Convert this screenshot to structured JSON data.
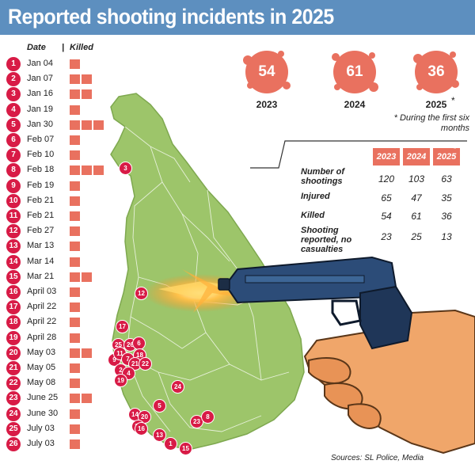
{
  "title": "Reported shooting incidents in 2025",
  "list_headers": {
    "date": "Date",
    "killed": "Killed"
  },
  "incidents": [
    {
      "n": "1",
      "date": "Jan 04",
      "killed": 1
    },
    {
      "n": "2",
      "date": "Jan 07",
      "killed": 2
    },
    {
      "n": "3",
      "date": "Jan 16",
      "killed": 2
    },
    {
      "n": "4",
      "date": "Jan 19",
      "killed": 1
    },
    {
      "n": "5",
      "date": "Jan 30",
      "killed": 3
    },
    {
      "n": "6",
      "date": "Feb 07",
      "killed": 1
    },
    {
      "n": "7",
      "date": "Feb 10",
      "killed": 1
    },
    {
      "n": "8",
      "date": "Feb 18",
      "killed": 3
    },
    {
      "n": "9",
      "date": "Feb 19",
      "killed": 1
    },
    {
      "n": "10",
      "date": "Feb 21",
      "killed": 1
    },
    {
      "n": "11",
      "date": "Feb 21",
      "killed": 1
    },
    {
      "n": "12",
      "date": "Feb 27",
      "killed": 1
    },
    {
      "n": "13",
      "date": "Mar 13",
      "killed": 1
    },
    {
      "n": "14",
      "date": "Mar 14",
      "killed": 1
    },
    {
      "n": "15",
      "date": "Mar 21",
      "killed": 2
    },
    {
      "n": "16",
      "date": "April 03",
      "killed": 1
    },
    {
      "n": "17",
      "date": "April 22",
      "killed": 1
    },
    {
      "n": "18",
      "date": "April 22",
      "killed": 1
    },
    {
      "n": "19",
      "date": "April 28",
      "killed": 1
    },
    {
      "n": "20",
      "date": "May 03",
      "killed": 2
    },
    {
      "n": "21",
      "date": "May 05",
      "killed": 1
    },
    {
      "n": "22",
      "date": "May 08",
      "killed": 1
    },
    {
      "n": "23",
      "date": "June 25",
      "killed": 2
    },
    {
      "n": "24",
      "date": "June 30",
      "killed": 1
    },
    {
      "n": "25",
      "date": "July 03",
      "killed": 1
    },
    {
      "n": "26",
      "date": "July 03",
      "killed": 1
    }
  ],
  "yearly_killed": [
    {
      "value": "54",
      "year": "2023"
    },
    {
      "value": "61",
      "year": "2024"
    },
    {
      "value": "36",
      "year": "2025"
    }
  ],
  "asterisk": "*",
  "note": "* During the first six months",
  "table": {
    "years": [
      "2023",
      "2024",
      "2025"
    ],
    "rows": [
      {
        "label": "Number of shootings",
        "values": [
          "120",
          "103",
          "63"
        ]
      },
      {
        "label": "Injured",
        "values": [
          "65",
          "47",
          "35"
        ]
      },
      {
        "label": "Killed",
        "values": [
          "54",
          "61",
          "36"
        ]
      },
      {
        "label": "Shooting reported, no casualties",
        "values": [
          "23",
          "25",
          "13"
        ]
      }
    ]
  },
  "map_markers": [
    {
      "n": "3"
    },
    {
      "n": "12"
    },
    {
      "n": "17"
    },
    {
      "n": "25"
    },
    {
      "n": "26"
    },
    {
      "n": "6"
    },
    {
      "n": "9"
    },
    {
      "n": "11"
    },
    {
      "n": "7"
    },
    {
      "n": "18"
    },
    {
      "n": "21"
    },
    {
      "n": "22"
    },
    {
      "n": "2"
    },
    {
      "n": "4"
    },
    {
      "n": "19"
    },
    {
      "n": "24"
    },
    {
      "n": "5"
    },
    {
      "n": "14"
    },
    {
      "n": "20"
    },
    {
      "n": "10"
    },
    {
      "n": "16"
    },
    {
      "n": "13"
    },
    {
      "n": "23"
    },
    {
      "n": "8"
    },
    {
      "n": "1"
    },
    {
      "n": "15"
    }
  ],
  "source": "Sources: SL Police, Media",
  "colors": {
    "header": "#5d8fbf",
    "marker": "#d81b46",
    "killed_square": "#e9715f",
    "island": "#9dc56a"
  }
}
